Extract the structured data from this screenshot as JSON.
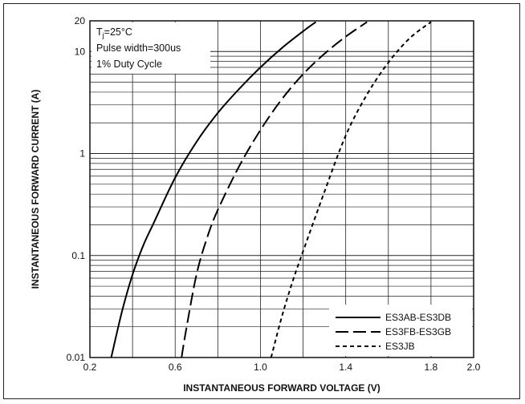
{
  "chart_data": {
    "type": "line",
    "title": "",
    "xlabel": "INSTANTANEOUS FORWARD VOLTAGE (V)",
    "ylabel": "INSTANTANEOUS FORWARD CURRENT (A)",
    "xlim": [
      0.2,
      2.0
    ],
    "ylim": [
      0.01,
      20
    ],
    "yscale": "log",
    "grid": true,
    "legend_position": "bottom-right",
    "x_ticks": [
      0.2,
      0.6,
      1.0,
      1.4,
      1.8,
      2.0
    ],
    "x_tick_labels": [
      "0.2",
      "0.6",
      "1.0",
      "1.4",
      "1.8",
      "2.0"
    ],
    "y_ticks": [
      0.01,
      0.1,
      1,
      10,
      20
    ],
    "y_tick_labels": [
      "0.01",
      "0.1",
      "1",
      "10",
      "20"
    ],
    "annotation_lines": [
      "T",
      "j",
      "=25°C",
      "Pulse width=300us",
      "1% Duty Cycle"
    ],
    "series": [
      {
        "name": "ES3AB-ES3DB",
        "style": "solid",
        "x": [
          0.3,
          0.35,
          0.4,
          0.45,
          0.5,
          0.6,
          0.7,
          0.8,
          0.9,
          1.0,
          1.1,
          1.2,
          1.26
        ],
        "y": [
          0.01,
          0.028,
          0.065,
          0.125,
          0.21,
          0.58,
          1.3,
          2.5,
          4.3,
          7.0,
          10.8,
          15.8,
          19.5
        ]
      },
      {
        "name": "ES3FB-ES3GB",
        "style": "dashed",
        "x": [
          0.63,
          0.65,
          0.7,
          0.75,
          0.8,
          0.9,
          1.0,
          1.1,
          1.2,
          1.3,
          1.4,
          1.5
        ],
        "y": [
          0.01,
          0.018,
          0.065,
          0.15,
          0.28,
          0.75,
          1.7,
          3.4,
          6.0,
          9.5,
          14.0,
          19.5
        ]
      },
      {
        "name": "ES3JB",
        "style": "dotted",
        "x": [
          1.05,
          1.1,
          1.15,
          1.2,
          1.3,
          1.4,
          1.5,
          1.6,
          1.7,
          1.8
        ],
        "y": [
          0.01,
          0.025,
          0.055,
          0.11,
          0.42,
          1.5,
          3.8,
          7.8,
          13.5,
          19.5
        ]
      }
    ]
  }
}
